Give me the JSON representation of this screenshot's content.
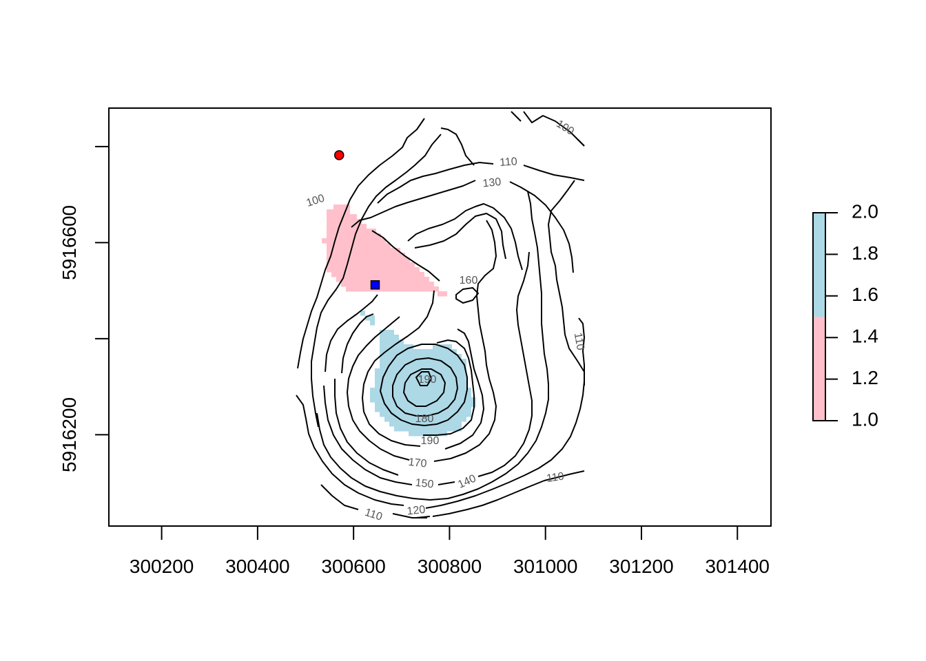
{
  "chart_data": {
    "type": "heatmap",
    "title": "",
    "xlabel": "",
    "ylabel": "",
    "xlim": [
      300090,
      301470
    ],
    "ylim": [
      5916010,
      5916880
    ],
    "x_ticks": [
      "300200",
      "300400",
      "300600",
      "300800",
      "301000",
      "301200",
      "301400"
    ],
    "y_ticks": [
      "5916200",
      "5916600"
    ],
    "y_ticks_unlabeled": [
      5916400,
      5916800
    ],
    "grid": false,
    "raster_classes": [
      {
        "value": 1,
        "color": "#FFC0CB",
        "region": "north-west of hill"
      },
      {
        "value": 2,
        "color": "#ADD8E6",
        "region": "south peak of hill"
      }
    ],
    "colorbar": {
      "placement": "right",
      "ticks": [
        "1.0",
        "1.2",
        "1.4",
        "1.6",
        "1.8",
        "2.0"
      ],
      "breaks": [
        1.0,
        1.5,
        2.0
      ],
      "colors": [
        "#FFC0CB",
        "#ADD8E6"
      ]
    },
    "contour_labels": [
      "100",
      "100",
      "110",
      "110",
      "110",
      "110",
      "120",
      "130",
      "140",
      "150",
      "160",
      "170",
      "180",
      "190",
      "190"
    ],
    "points": [
      {
        "x": 300570,
        "y": 5916782,
        "shape": "circle",
        "color": "#FF0000"
      },
      {
        "x": 300645,
        "y": 5916512,
        "shape": "square",
        "color": "#0000FF"
      }
    ]
  }
}
